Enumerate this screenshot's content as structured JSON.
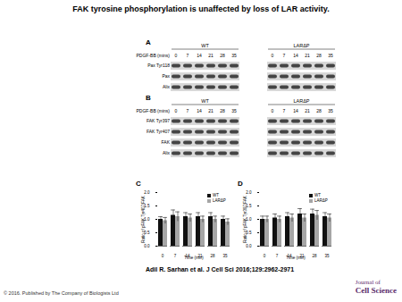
{
  "title": "FAK tyrosine phosphorylation is unaffected by loss of LAR activity.",
  "panels": [
    {
      "label": "A",
      "treatment": "PDGF-BB (mins)",
      "groups": [
        "WT",
        "LARΔP"
      ],
      "times": [
        0,
        7,
        14,
        21,
        28,
        35
      ],
      "rows": [
        "Pax Tyr118",
        "Pax",
        "Alix"
      ]
    },
    {
      "label": "B",
      "treatment": "PDGF-BB (mins)",
      "groups": [
        "WT",
        "LARΔP"
      ],
      "times": [
        0,
        7,
        14,
        21,
        28,
        35
      ],
      "rows": [
        "FAK Tyr397",
        "FAK Tyr407",
        "FAK",
        "Alix"
      ]
    }
  ],
  "chart_data": [
    {
      "type": "bar",
      "panel": "C",
      "categories": [
        0,
        7,
        14,
        21,
        28,
        35
      ],
      "x_label": "Time (min)",
      "y_label": "Ratio of pFAK Tyr407/FAK",
      "ylim": [
        0,
        2
      ],
      "yticks": [
        {
          "value": 0,
          "label": "0.0"
        },
        {
          "value": 0.5,
          "label": "0.5"
        },
        {
          "value": 1,
          "label": "1.0"
        },
        {
          "value": 1.5,
          "label": "1.5"
        },
        {
          "value": 2,
          "label": "2.0"
        }
      ],
      "legend": "top-right",
      "series": [
        {
          "name": "WT",
          "color": "#111111",
          "values": [
            1.0,
            1.15,
            1.1,
            1.1,
            1.1,
            1.0
          ],
          "errors": [
            0.1,
            0.2,
            0.15,
            0.15,
            0.15,
            0.12
          ]
        },
        {
          "name": "LARΔP",
          "color": "#a6a6a6",
          "values": [
            0.95,
            1.1,
            1.05,
            1.0,
            1.0,
            0.9
          ],
          "errors": [
            0.12,
            0.18,
            0.15,
            0.12,
            0.12,
            0.12
          ]
        }
      ]
    },
    {
      "type": "bar",
      "panel": "D",
      "categories": [
        0,
        7,
        14,
        21,
        28,
        35
      ],
      "x_label": "Time (min)",
      "y_label": "Ratio of pFAK Tyr397/FAK",
      "ylim": [
        0,
        2
      ],
      "yticks": [
        {
          "value": 0,
          "label": "0.0"
        },
        {
          "value": 0.5,
          "label": "0.5"
        },
        {
          "value": 1,
          "label": "1.0"
        },
        {
          "value": 1.5,
          "label": "1.5"
        },
        {
          "value": 2,
          "label": "2.0"
        }
      ],
      "legend": "top-right",
      "series": [
        {
          "name": "WT",
          "color": "#111111",
          "values": [
            1.0,
            1.05,
            1.1,
            1.2,
            1.2,
            1.1
          ],
          "errors": [
            0.12,
            0.15,
            0.15,
            0.2,
            0.18,
            0.15
          ]
        },
        {
          "name": "LARΔP",
          "color": "#a6a6a6",
          "values": [
            1.0,
            1.0,
            1.05,
            1.05,
            1.15,
            1.05
          ],
          "errors": [
            0.12,
            0.12,
            0.15,
            0.15,
            0.18,
            0.15
          ]
        }
      ]
    }
  ],
  "citation": "Adil R. Sarhan et al. J Cell Sci 2016;129:2962-2971",
  "copyright": "© 2016. Published by The Company of Biologists Ltd",
  "logo": [
    "Journal of",
    "Cell Science"
  ]
}
